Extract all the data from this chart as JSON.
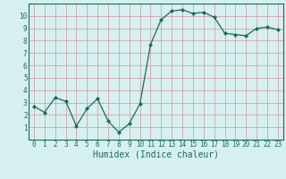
{
  "x": [
    0,
    1,
    2,
    3,
    4,
    5,
    6,
    7,
    8,
    9,
    10,
    11,
    12,
    13,
    14,
    15,
    16,
    17,
    18,
    19,
    20,
    21,
    22,
    23
  ],
  "y": [
    2.7,
    2.2,
    3.4,
    3.1,
    1.1,
    2.5,
    3.3,
    1.5,
    0.6,
    1.3,
    2.9,
    7.7,
    9.7,
    10.4,
    10.5,
    10.2,
    10.3,
    9.9,
    8.6,
    8.5,
    8.4,
    9.0,
    9.1,
    8.9
  ],
  "xlabel": "Humidex (Indice chaleur)",
  "yticks": [
    1,
    2,
    3,
    4,
    5,
    6,
    7,
    8,
    9,
    10
  ],
  "xticks": [
    0,
    1,
    2,
    3,
    4,
    5,
    6,
    7,
    8,
    9,
    10,
    11,
    12,
    13,
    14,
    15,
    16,
    17,
    18,
    19,
    20,
    21,
    22,
    23
  ],
  "line_color": "#1a6b5a",
  "marker_color": "#1a6b5a",
  "bg_color": "#d6f0ef",
  "grid_color": "#bf9faf",
  "tick_label_color": "#1a6b5a",
  "xlabel_color": "#1a6b5a"
}
